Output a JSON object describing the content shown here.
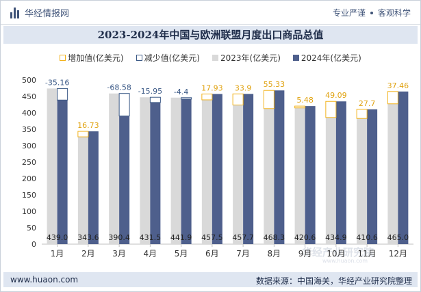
{
  "header": {
    "brand": "华经情报网",
    "tag1": "专业严谨",
    "tag2": "客观科学"
  },
  "title": "2023-2024年中国与欧洲联盟月度出口商品总值",
  "legend": {
    "increase": "增加值(亿美元)",
    "decrease": "减少值(亿美元)",
    "y2023": "2023年(亿美元)",
    "y2024": "2024年(亿美元)"
  },
  "footer": {
    "website": "www.huaon.com",
    "source": "数据来源：中国海关，华经产业研究院整理"
  },
  "watermark": "华经产业研究院",
  "watermark_url": "www.huaon.com",
  "colors": {
    "y2023": "#d9d9d9",
    "y2024": "#4e5f8c",
    "increase": "#f2b21b",
    "decrease": "#3c5a87",
    "increase_label": "#e0a20f",
    "decrease_label": "#3c5a87"
  },
  "chart_data": {
    "type": "bar",
    "title": "2023-2024年中国与欧洲联盟月度出口商品总值",
    "xlabel": "",
    "ylabel": "",
    "ylim": [
      0,
      500
    ],
    "yticks": [
      0,
      50,
      100,
      150,
      200,
      250,
      300,
      350,
      400,
      450,
      500
    ],
    "categories": [
      "1月",
      "2月",
      "3月",
      "4月",
      "5月",
      "6月",
      "7月",
      "8月",
      "9月",
      "10月",
      "11月",
      "12月"
    ],
    "series": [
      {
        "name": "2023年(亿美元)",
        "values": [
          474.16,
          326.87,
          458.98,
          447.45,
          446.3,
          439.57,
          423.8,
          412.97,
          415.12,
          385.81,
          382.9,
          427.54
        ]
      },
      {
        "name": "2024年(亿美元)",
        "values": [
          439.0,
          343.6,
          390.4,
          431.5,
          441.9,
          457.5,
          457.7,
          468.3,
          420.6,
          434.9,
          410.6,
          465.0
        ]
      }
    ],
    "difference_labels": [
      "-35.16",
      "16.73",
      "-68.58",
      "-15.95",
      "-4.4",
      "17.93",
      "33.9",
      "55.33",
      "5.48",
      "49.09",
      "27.7",
      "37.46"
    ],
    "value_labels_2024": [
      "439.0",
      "343.6",
      "390.4",
      "431.5",
      "441.9",
      "457.5",
      "457.7",
      "468.3",
      "420.6",
      "434.9",
      "410.6",
      "465.0"
    ]
  }
}
